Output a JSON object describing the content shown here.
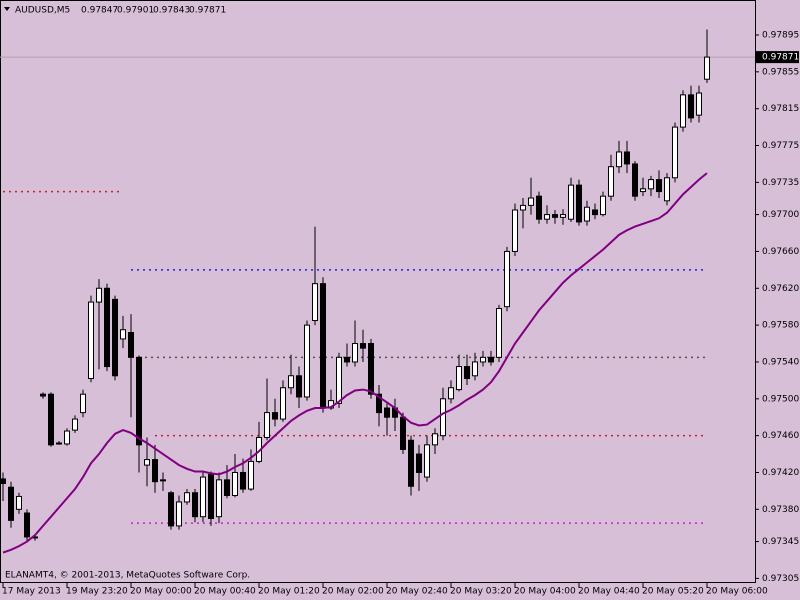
{
  "chart_data": {
    "type": "candlestick",
    "symbol": "AUDUSD,M5",
    "copyright": "ELANAMT4, © 2001-2013, MetaQuotes Software Corp.",
    "categories": [
      "17 May 2013",
      null,
      null,
      null,
      null,
      null,
      null,
      null,
      "19 May 23:20",
      null,
      null,
      null,
      null,
      null,
      null,
      null,
      "20 May 00:00",
      null,
      null,
      null,
      null,
      null,
      null,
      null,
      "20 May 00:40",
      null,
      null,
      null,
      null,
      null,
      null,
      null,
      "20 May 01:20",
      null,
      null,
      null,
      null,
      null,
      null,
      null,
      "20 May 02:00",
      null,
      null,
      null,
      null,
      null,
      null,
      null,
      "20 May 02:40",
      null,
      null,
      null,
      null,
      null,
      null,
      null,
      "20 May 03:20",
      null,
      null,
      null,
      null,
      null,
      null,
      null,
      "20 May 04:00",
      null,
      null,
      null,
      null,
      null,
      null,
      null,
      "20 May 04:40",
      null,
      null,
      null,
      null,
      null,
      null,
      null,
      "20 May 05:20",
      null,
      null,
      null,
      null,
      null,
      null,
      null,
      "20 May 06:00"
    ],
    "open": [
      0.97413,
      0.97404,
      0.9738,
      0.97376,
      0.9735,
      0.97505,
      0.97505,
      0.97452,
      0.97451,
      0.97466,
      0.97485,
      0.97522,
      0.97605,
      0.9762,
      0.97608,
      0.97565,
      0.97572,
      0.97545,
      0.97428,
      0.97434,
      0.97412,
      0.97398,
      0.97362,
      0.97388,
      0.97398,
      0.97372,
      0.97418,
      0.97372,
      0.97412,
      0.97395,
      0.9742,
      0.97402,
      0.97432,
      0.97458,
      0.97485,
      0.97478,
      0.97512,
      0.97525,
      0.97502,
      0.97585,
      0.97625,
      0.9749,
      0.97495,
      0.97545,
      0.9754,
      0.9756,
      0.9756,
      0.97505,
      0.9749,
      0.9749,
      0.9748,
      0.97455,
      0.9744,
      0.97415,
      0.9745,
      0.9746,
      0.975,
      0.9751,
      0.97535,
      0.97525,
      0.9754,
      0.97545,
      0.97545,
      0.976,
      0.9766,
      0.97705,
      0.9771,
      0.9772,
      0.97695,
      0.977,
      0.97697,
      0.97695,
      0.97732,
      0.97693,
      0.97705,
      0.977,
      0.9772,
      0.97752,
      0.97768,
      0.97755,
      0.97725,
      0.97728,
      0.97738,
      0.97715,
      0.9774,
      0.97795,
      0.9783,
      0.97808,
      0.97847
    ],
    "high": [
      0.9742,
      0.9741,
      0.97398,
      0.9738,
      0.97352,
      0.97507,
      0.97507,
      0.97454,
      0.97468,
      0.97482,
      0.9751,
      0.97612,
      0.9763,
      0.97625,
      0.97612,
      0.9759,
      0.97592,
      0.97547,
      0.97458,
      0.9745,
      0.9742,
      0.974,
      0.97395,
      0.97402,
      0.97402,
      0.9742,
      0.97421,
      0.9742,
      0.97428,
      0.9744,
      0.97435,
      0.97445,
      0.97475,
      0.97522,
      0.975,
      0.9752,
      0.97548,
      0.97535,
      0.97585,
      0.97687,
      0.97632,
      0.9751,
      0.9755,
      0.9756,
      0.97585,
      0.97575,
      0.97565,
      0.97515,
      0.97495,
      0.975,
      0.97485,
      0.9746,
      0.9745,
      0.9746,
      0.97468,
      0.97512,
      0.9752,
      0.97548,
      0.97548,
      0.9755,
      0.97552,
      0.97552,
      0.97602,
      0.97665,
      0.97712,
      0.97718,
      0.9774,
      0.97725,
      0.9771,
      0.97705,
      0.97706,
      0.9774,
      0.97738,
      0.97715,
      0.97712,
      0.97725,
      0.97765,
      0.9778,
      0.9778,
      0.97758,
      0.9774,
      0.97742,
      0.97748,
      0.97745,
      0.978,
      0.97835,
      0.9784,
      0.9784,
      0.97901
    ],
    "low": [
      0.97389,
      0.9736,
      0.97375,
      0.97345,
      0.97346,
      0.975,
      0.97448,
      0.9745,
      0.97449,
      0.97463,
      0.9748,
      0.97518,
      0.97532,
      0.9753,
      0.9752,
      0.97555,
      0.9748,
      0.9742,
      0.97405,
      0.97398,
      0.974,
      0.97358,
      0.97358,
      0.97385,
      0.97366,
      0.97366,
      0.97362,
      0.97365,
      0.97392,
      0.97393,
      0.97398,
      0.974,
      0.9743,
      0.97455,
      0.9747,
      0.97475,
      0.97505,
      0.9749,
      0.97498,
      0.9758,
      0.97485,
      0.97488,
      0.9749,
      0.97535,
      0.97535,
      0.9754,
      0.975,
      0.9747,
      0.9746,
      0.97465,
      0.9744,
      0.97395,
      0.974,
      0.9741,
      0.9744,
      0.97455,
      0.97495,
      0.97508,
      0.97515,
      0.9752,
      0.97535,
      0.97536,
      0.9754,
      0.97595,
      0.97655,
      0.97685,
      0.977,
      0.9769,
      0.9769,
      0.9769,
      0.97689,
      0.97692,
      0.97688,
      0.97688,
      0.97695,
      0.97698,
      0.97715,
      0.97745,
      0.97745,
      0.97715,
      0.9772,
      0.9772,
      0.97718,
      0.9771,
      0.97735,
      0.9779,
      0.978,
      0.978,
      0.97843
    ],
    "close": [
      0.97408,
      0.97368,
      0.97394,
      0.9735,
      0.9735,
      0.97503,
      0.9745,
      0.97452,
      0.97465,
      0.97478,
      0.97505,
      0.97605,
      0.9762,
      0.97535,
      0.97525,
      0.97575,
      0.97545,
      0.9745,
      0.97434,
      0.9741,
      0.97411,
      0.97362,
      0.97388,
      0.97398,
      0.97372,
      0.97415,
      0.9737,
      0.97412,
      0.97395,
      0.9742,
      0.97402,
      0.97432,
      0.97458,
      0.97485,
      0.97478,
      0.97512,
      0.97525,
      0.97502,
      0.9758,
      0.97625,
      0.9749,
      0.97498,
      0.97545,
      0.9754,
      0.9756,
      0.97555,
      0.97505,
      0.97485,
      0.9748,
      0.9748,
      0.97445,
      0.97405,
      0.9742,
      0.9745,
      0.97462,
      0.975,
      0.97512,
      0.97535,
      0.97522,
      0.9754,
      0.97545,
      0.9754,
      0.97598,
      0.9766,
      0.97705,
      0.9771,
      0.97718,
      0.97695,
      0.977,
      0.97697,
      0.977,
      0.97732,
      0.97692,
      0.97708,
      0.977,
      0.9772,
      0.97752,
      0.97768,
      0.97755,
      0.9772,
      0.97728,
      0.97738,
      0.97725,
      0.9774,
      0.97795,
      0.9783,
      0.97805,
      0.97832,
      0.97871
    ],
    "ma": {
      "color": "#800080",
      "values": [
        0.97333,
        0.97336,
        0.9734,
        0.97345,
        0.97352,
        0.97362,
        0.97372,
        0.97382,
        0.97392,
        0.97402,
        0.97415,
        0.9743,
        0.9744,
        0.97452,
        0.97462,
        0.97466,
        0.97463,
        0.97457,
        0.97452,
        0.97446,
        0.9744,
        0.97434,
        0.97428,
        0.97424,
        0.97421,
        0.97421,
        0.97419,
        0.97418,
        0.97421,
        0.97426,
        0.9743,
        0.97436,
        0.97443,
        0.97452,
        0.9746,
        0.97468,
        0.97476,
        0.97482,
        0.97487,
        0.9749,
        0.9749,
        0.97491,
        0.97497,
        0.97504,
        0.97509,
        0.9751,
        0.97508,
        0.97502,
        0.97496,
        0.9749,
        0.97481,
        0.97474,
        0.97471,
        0.97472,
        0.97478,
        0.97484,
        0.97488,
        0.97493,
        0.97499,
        0.97504,
        0.9751,
        0.97518,
        0.9753,
        0.97545,
        0.9756,
        0.97572,
        0.97584,
        0.97596,
        0.97606,
        0.97616,
        0.97626,
        0.97634,
        0.97641,
        0.97648,
        0.97655,
        0.97662,
        0.9767,
        0.97678,
        0.97683,
        0.97687,
        0.9769,
        0.97693,
        0.97696,
        0.97702,
        0.97712,
        0.97722,
        0.9773,
        0.97738,
        0.97745
      ]
    },
    "levels": [
      {
        "value": 0.97725,
        "color": "#cc2222",
        "from": 0,
        "to": 15
      },
      {
        "value": 0.9764,
        "color": "#2222cc",
        "from": 16,
        "to": 88
      },
      {
        "value": 0.97545,
        "color": "#555544",
        "from": 17,
        "to": 88
      },
      {
        "value": 0.9746,
        "color": "#cc2222",
        "from": 19,
        "to": 88
      },
      {
        "value": 0.97365,
        "color": "#cc22cc",
        "from": 16,
        "to": 88
      }
    ],
    "ylim": [
      0.973,
      0.97933
    ],
    "yticks": [
      {
        "value": 0.97895,
        "label": "0.97895"
      },
      {
        "value": 0.97855,
        "label": "0.97855"
      },
      {
        "value": 0.97815,
        "label": "0.97815"
      },
      {
        "value": 0.97775,
        "label": "0.97775"
      },
      {
        "value": 0.97735,
        "label": "0.97735"
      },
      {
        "value": 0.977,
        "label": "0.97700"
      },
      {
        "value": 0.9766,
        "label": "0.97660"
      },
      {
        "value": 0.9762,
        "label": "0.97620"
      },
      {
        "value": 0.9758,
        "label": "0.97580"
      },
      {
        "value": 0.9754,
        "label": "0.97540"
      },
      {
        "value": 0.975,
        "label": "0.97500"
      },
      {
        "value": 0.9746,
        "label": "0.97460"
      },
      {
        "value": 0.9742,
        "label": "0.97420"
      },
      {
        "value": 0.9738,
        "label": "0.97380"
      },
      {
        "value": 0.97345,
        "label": "0.97345"
      },
      {
        "value": 0.97305,
        "label": "0.97305"
      }
    ]
  }
}
